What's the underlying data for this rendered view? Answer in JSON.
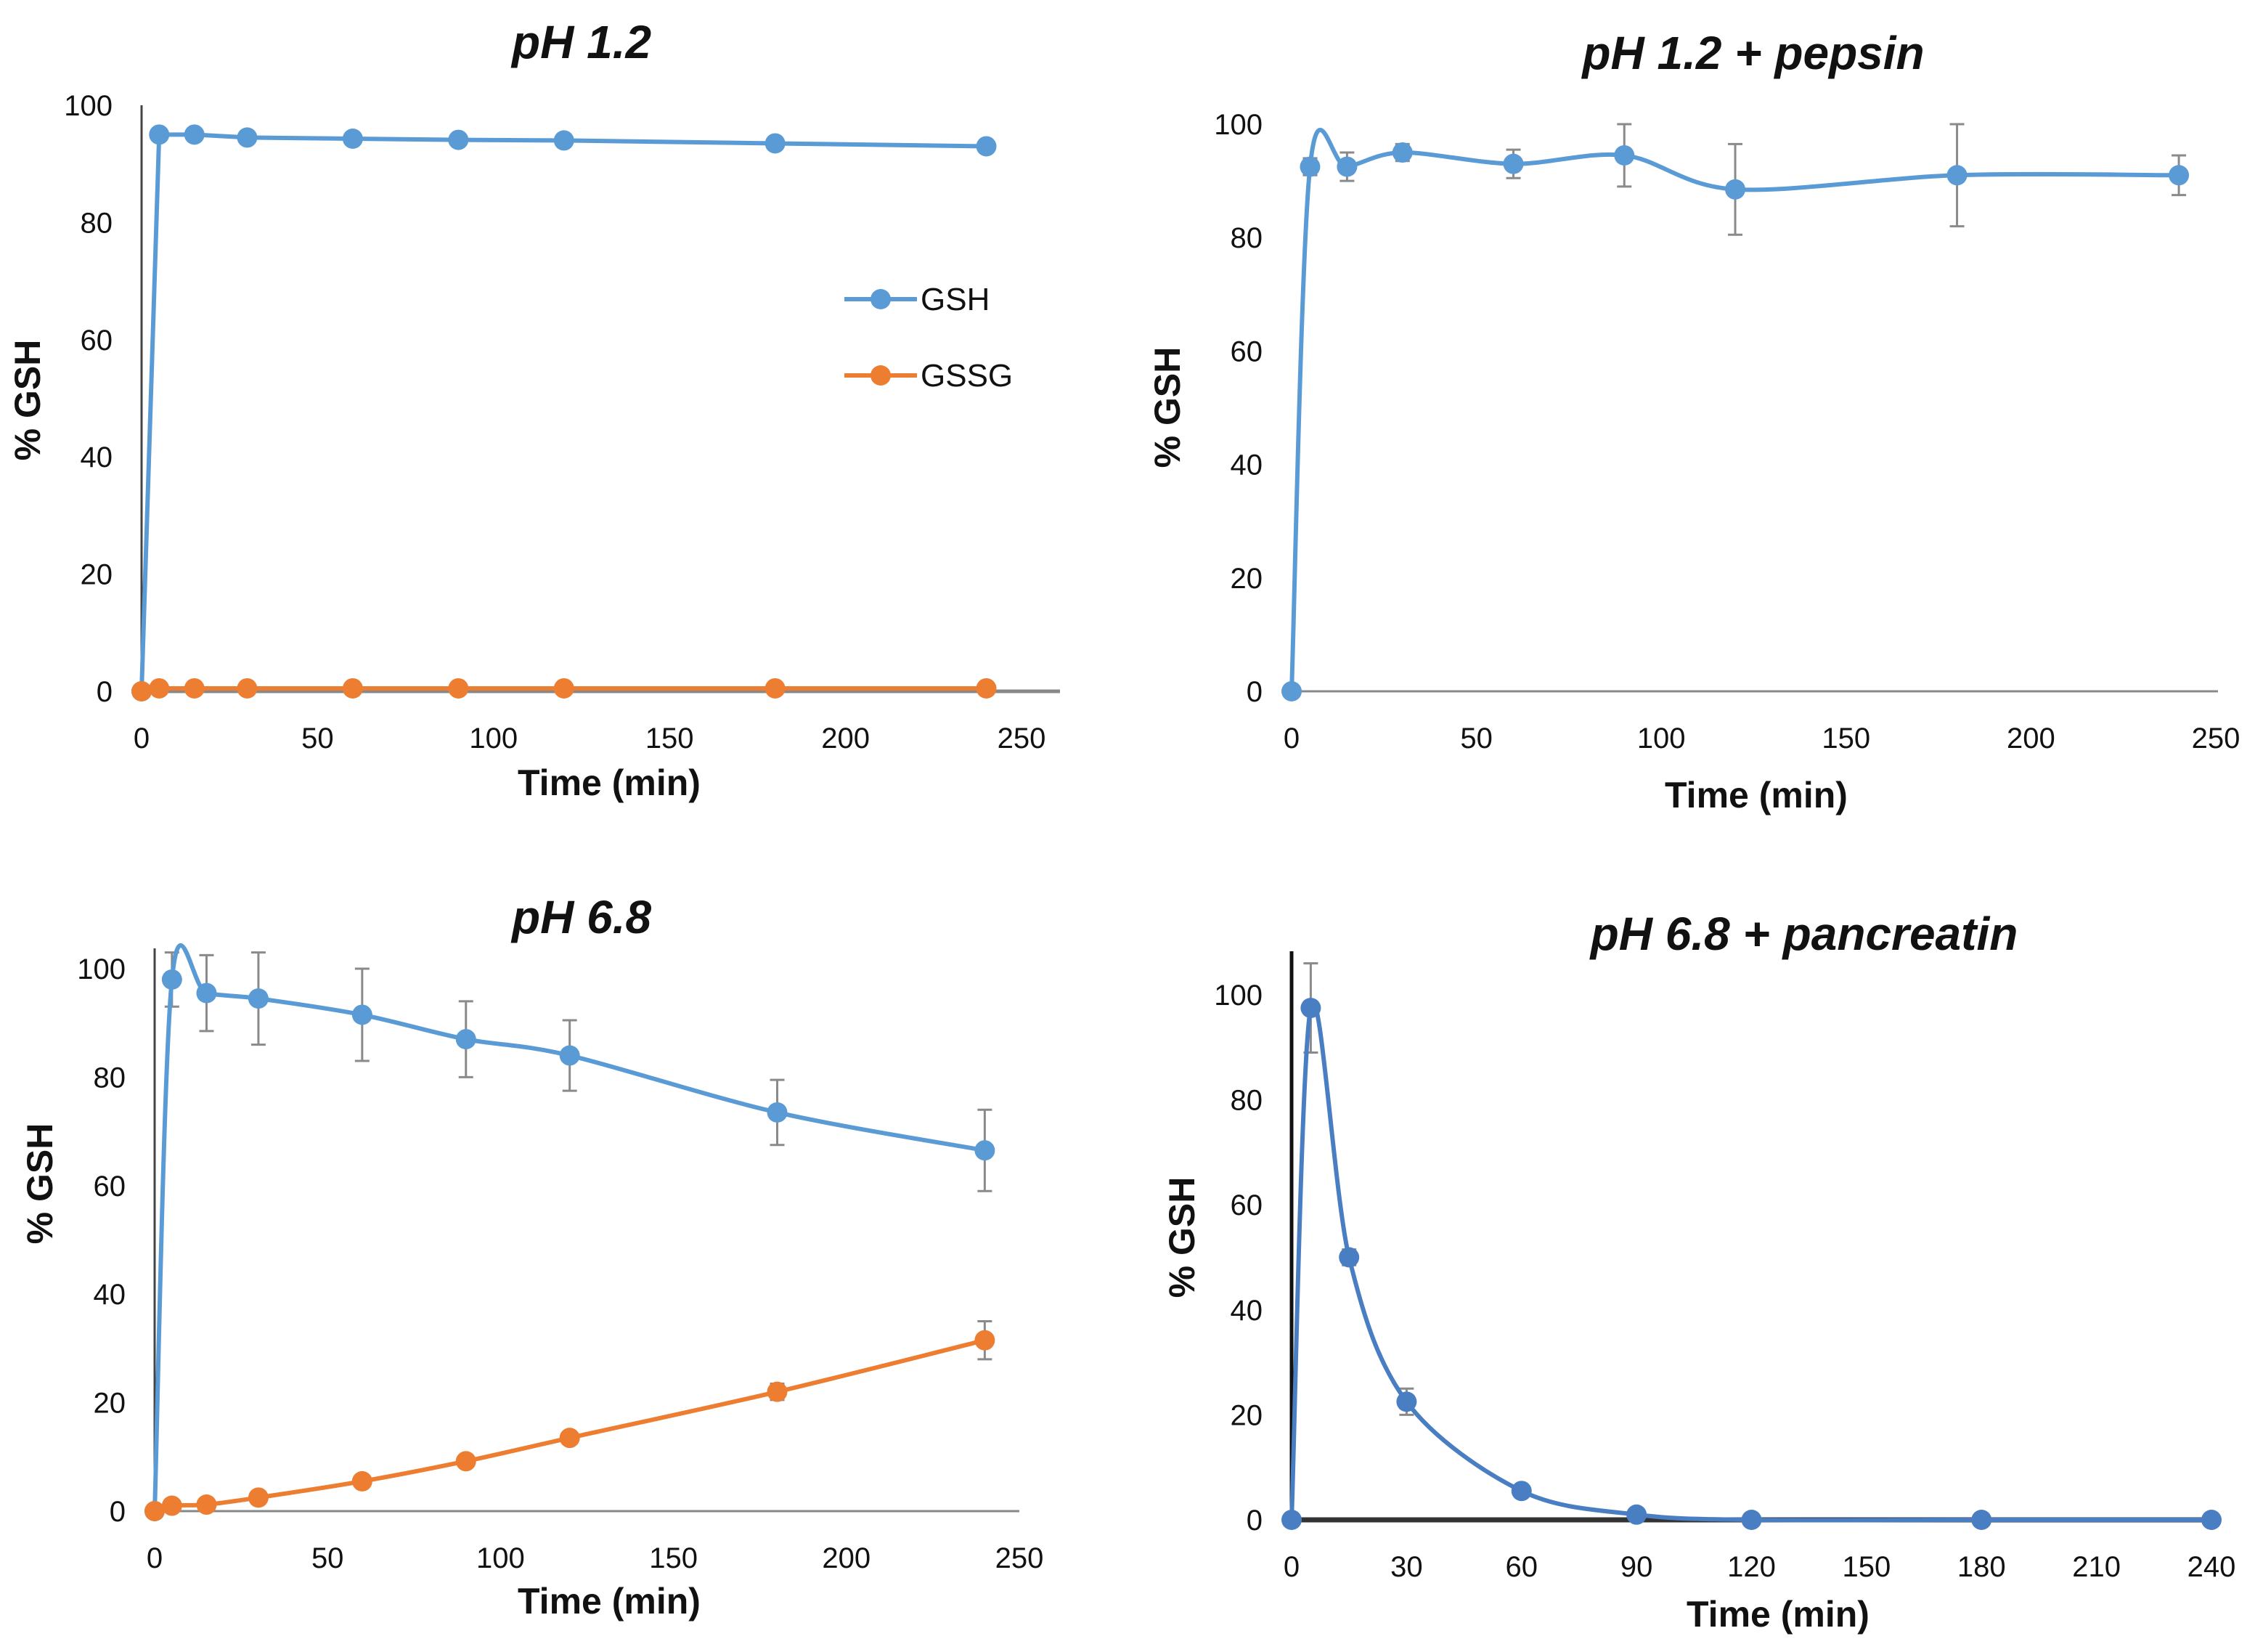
{
  "chart_data": [
    {
      "type": "line",
      "title": "pH 1.2",
      "xlabel": "Time (min)",
      "ylabel": "% GSH",
      "xlim": [
        0,
        250
      ],
      "ylim": [
        0,
        100
      ],
      "xticks": [
        0,
        50,
        100,
        150,
        200,
        250
      ],
      "yticks": [
        0,
        20,
        40,
        60,
        80,
        100
      ],
      "legend": "right",
      "x": [
        0,
        5,
        15,
        30,
        60,
        90,
        120,
        180,
        240
      ],
      "series": [
        {
          "name": "GSH",
          "color": "#5B9BD5",
          "values": [
            0,
            95,
            95,
            94.5,
            94.3,
            94.1,
            94,
            93.5,
            93
          ],
          "errors": [
            0,
            0.5,
            0.5,
            0.5,
            0.5,
            0.5,
            0.5,
            0.8,
            0.5
          ]
        },
        {
          "name": "GSSG",
          "color": "#ED7D31",
          "values": [
            0,
            0.5,
            0.5,
            0.5,
            0.5,
            0.5,
            0.5,
            0.5,
            0.5
          ],
          "errors": [
            0,
            0,
            0,
            0,
            0,
            0,
            0,
            0,
            0
          ]
        }
      ]
    },
    {
      "type": "line",
      "title": "pH 1.2 + pepsin",
      "xlabel": "Time (min)",
      "ylabel": "% GSH",
      "xlim": [
        0,
        250
      ],
      "ylim": [
        0,
        100
      ],
      "xticks": [
        0,
        50,
        100,
        150,
        200,
        250
      ],
      "yticks": [
        0,
        20,
        40,
        60,
        80,
        100
      ],
      "x": [
        0,
        5,
        15,
        30,
        60,
        90,
        120,
        180,
        240
      ],
      "series": [
        {
          "name": "GSH",
          "color": "#5B9BD5",
          "values": [
            0,
            92.5,
            92.5,
            95,
            93,
            94.5,
            88.5,
            91,
            91
          ],
          "errors": [
            0,
            1.5,
            2.5,
            1.5,
            2.5,
            5.5,
            8,
            9,
            3.5
          ]
        }
      ]
    },
    {
      "type": "line",
      "title": "pH 6.8",
      "xlabel": "Time (min)",
      "ylabel": "% GSH",
      "xlim": [
        0,
        250
      ],
      "ylim": [
        0,
        100
      ],
      "xticks": [
        0,
        50,
        100,
        150,
        200,
        250
      ],
      "yticks": [
        0,
        20,
        40,
        60,
        80,
        100
      ],
      "x": [
        0,
        5,
        15,
        30,
        60,
        90,
        120,
        180,
        240
      ],
      "series": [
        {
          "name": "GSH",
          "color": "#5B9BD5",
          "values": [
            0,
            98,
            95.5,
            94.5,
            91.5,
            87,
            84,
            73.5,
            66.5
          ],
          "errors": [
            0,
            5,
            7,
            8.5,
            8.5,
            7,
            6.5,
            6,
            7.5
          ]
        },
        {
          "name": "GSSG",
          "color": "#ED7D31",
          "values": [
            0,
            1,
            1.2,
            2.5,
            5.5,
            9.2,
            13.5,
            22,
            31.5
          ],
          "errors": [
            0,
            0,
            0,
            0.3,
            0.3,
            0.3,
            0.5,
            1.5,
            3.5
          ]
        }
      ]
    },
    {
      "type": "line",
      "title": "pH 6.8 + pancreatin",
      "xlabel": "Time (min)",
      "ylabel": "% GSH",
      "xlim": [
        0,
        240
      ],
      "ylim": [
        0,
        100
      ],
      "xticks": [
        0,
        30,
        60,
        90,
        120,
        150,
        180,
        210,
        240
      ],
      "yticks": [
        0,
        20,
        40,
        60,
        80,
        100
      ],
      "x": [
        0,
        5,
        15,
        30,
        60,
        90,
        120,
        180,
        240
      ],
      "series": [
        {
          "name": "GSH",
          "color": "#4A7EC2",
          "values": [
            0,
            97.5,
            50,
            22.5,
            5.5,
            1,
            0,
            0,
            0
          ],
          "errors": [
            0,
            8.5,
            1.5,
            2.5,
            0,
            0,
            0,
            0,
            0
          ]
        }
      ]
    }
  ]
}
